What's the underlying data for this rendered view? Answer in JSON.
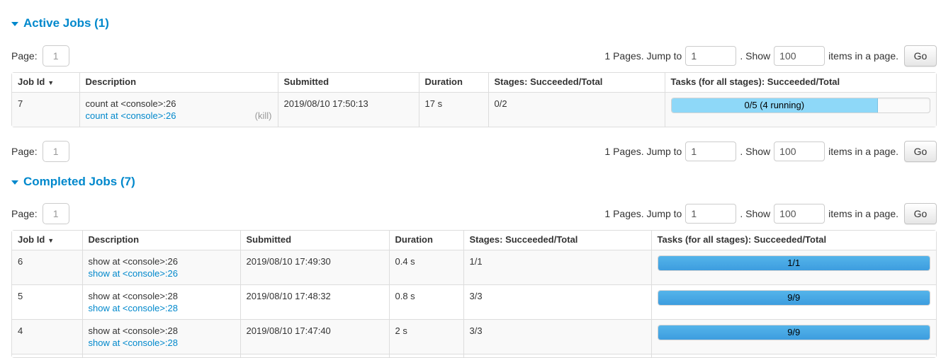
{
  "colors": {
    "section_title_blue": "#0088cc",
    "link_blue": "#0088cc",
    "table_border": "#dddddd",
    "stripe_bg": "#f9f9f9",
    "kill_gray": "#999999",
    "running_bar_fill": "#8ed8f8",
    "succeeded_bar_fill_top": "#54b4ea",
    "succeeded_bar_fill_bottom": "#3d9ddf"
  },
  "pagination": {
    "page_label": "Page:",
    "page_value": "1",
    "pages_jump_text": "1 Pages. Jump to",
    "jump_value": "1",
    "dot_show_text": ". Show",
    "show_value": "100",
    "items_text": "items in a page.",
    "go_label": "Go"
  },
  "active": {
    "title": "Active Jobs (1)",
    "table": {
      "headers": {
        "job_id": "Job Id",
        "sort_arrow": "▼",
        "description": "Description",
        "submitted": "Submitted",
        "duration": "Duration",
        "stages": "Stages: Succeeded/Total",
        "tasks": "Tasks (for all stages): Succeeded/Total"
      },
      "rows": [
        {
          "job_id": "7",
          "description": "count at <console>:26",
          "description_link": "count at <console>:26",
          "kill_label": "(kill)",
          "submitted": "2019/08/10 17:50:13",
          "duration": "17 s",
          "stages": "0/2",
          "tasks_label": "0/5 (4 running)",
          "tasks_percent": 80,
          "tasks_state": "running"
        }
      ]
    }
  },
  "completed": {
    "title": "Completed Jobs (7)",
    "table": {
      "headers": {
        "job_id": "Job Id",
        "sort_arrow": "▼",
        "description": "Description",
        "submitted": "Submitted",
        "duration": "Duration",
        "stages": "Stages: Succeeded/Total",
        "tasks": "Tasks (for all stages): Succeeded/Total"
      },
      "rows": [
        {
          "job_id": "6",
          "description": "show at <console>:26",
          "description_link": "show at <console>:26",
          "submitted": "2019/08/10 17:49:30",
          "duration": "0.4 s",
          "stages": "1/1",
          "tasks_label": "1/1",
          "tasks_percent": 100,
          "tasks_state": "succeeded"
        },
        {
          "job_id": "5",
          "description": "show at <console>:28",
          "description_link": "show at <console>:28",
          "submitted": "2019/08/10 17:48:32",
          "duration": "0.8 s",
          "stages": "3/3",
          "tasks_label": "9/9",
          "tasks_percent": 100,
          "tasks_state": "succeeded"
        },
        {
          "job_id": "4",
          "description": "show at <console>:28",
          "description_link": "show at <console>:28",
          "submitted": "2019/08/10 17:47:40",
          "duration": "2 s",
          "stages": "3/3",
          "tasks_label": "9/9",
          "tasks_percent": 100,
          "tasks_state": "succeeded"
        }
      ]
    }
  }
}
